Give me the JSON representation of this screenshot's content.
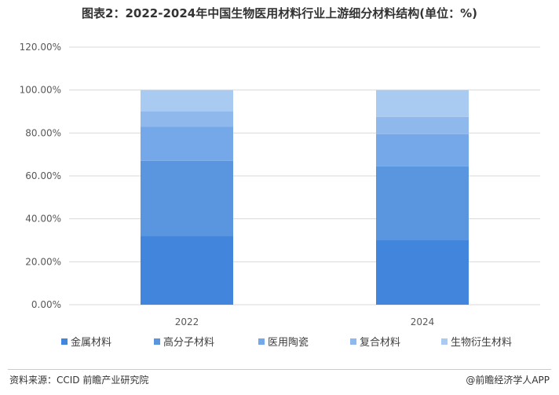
{
  "title": "图表2：2022-2024年中国生物医用材料行业上游细分材料结构(单位：%)",
  "source": "资料来源：CCID 前瞻产业研究院",
  "brand": "@前瞻经济学人APP",
  "chart_data": {
    "type": "bar",
    "stacked": true,
    "categories": [
      "2022",
      "2024"
    ],
    "ylim": [
      0,
      120
    ],
    "yticks": [
      "0.00%",
      "20.00%",
      "40.00%",
      "60.00%",
      "80.00%",
      "100.00%",
      "120.00%"
    ],
    "grid": true,
    "legend_position": "bottom",
    "colors": [
      "#4285dc",
      "#5a96e0",
      "#75a8e8",
      "#8fb9ed",
      "#a9caf1"
    ],
    "series": [
      {
        "name": "金属材料",
        "values": [
          32,
          30
        ]
      },
      {
        "name": "高分子材料",
        "values": [
          35,
          34.5
        ]
      },
      {
        "name": "医用陶瓷",
        "values": [
          16,
          15
        ]
      },
      {
        "name": "复合材料",
        "values": [
          7,
          8
        ]
      },
      {
        "name": "生物衍生材料",
        "values": [
          10,
          12.5
        ]
      }
    ]
  }
}
